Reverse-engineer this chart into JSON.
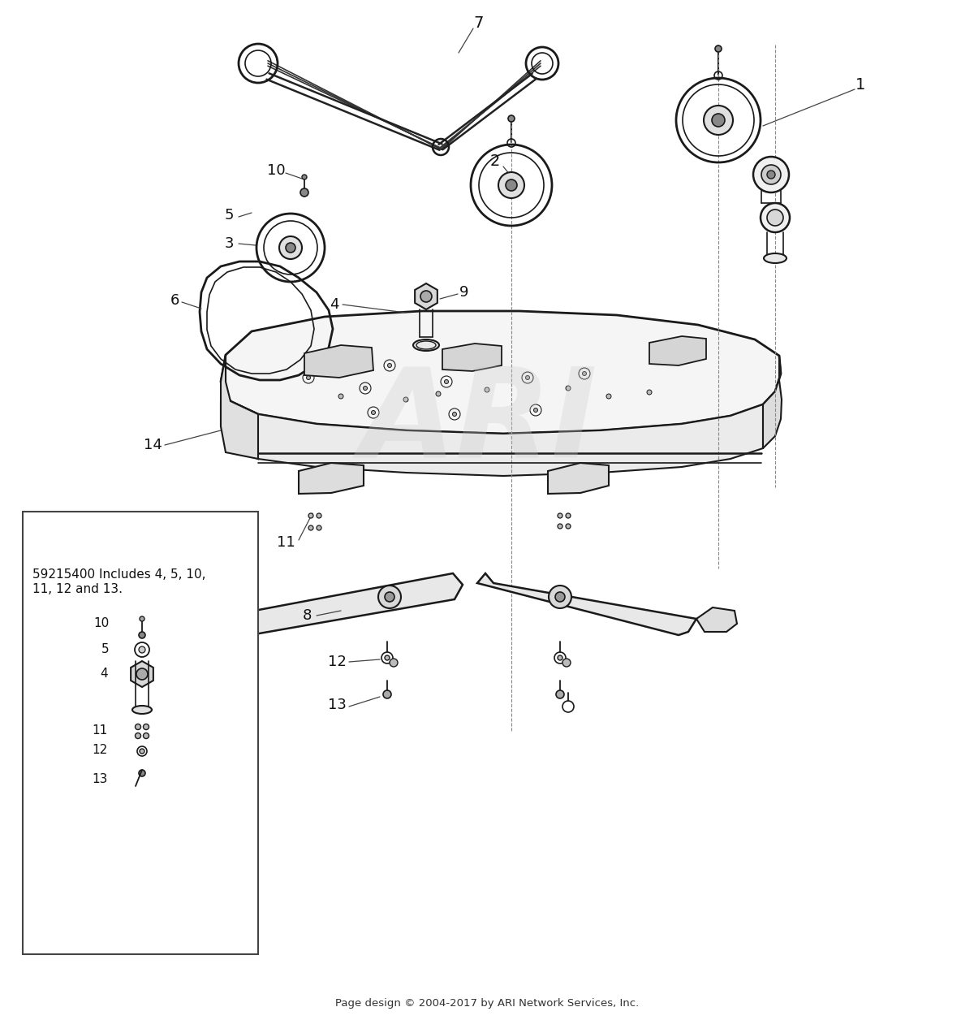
{
  "bg_color": "#ffffff",
  "line_color": "#1a1a1a",
  "label_color": "#111111",
  "footer_text": "Page design © 2004-2017 by ARI Network Services, Inc.",
  "inset_text_line1": "59215400 Includes 4, 5, 10,",
  "inset_text_line2": "11, 12 and 13.",
  "figsize": [
    12.0,
    12.56
  ],
  "dpi": 100
}
